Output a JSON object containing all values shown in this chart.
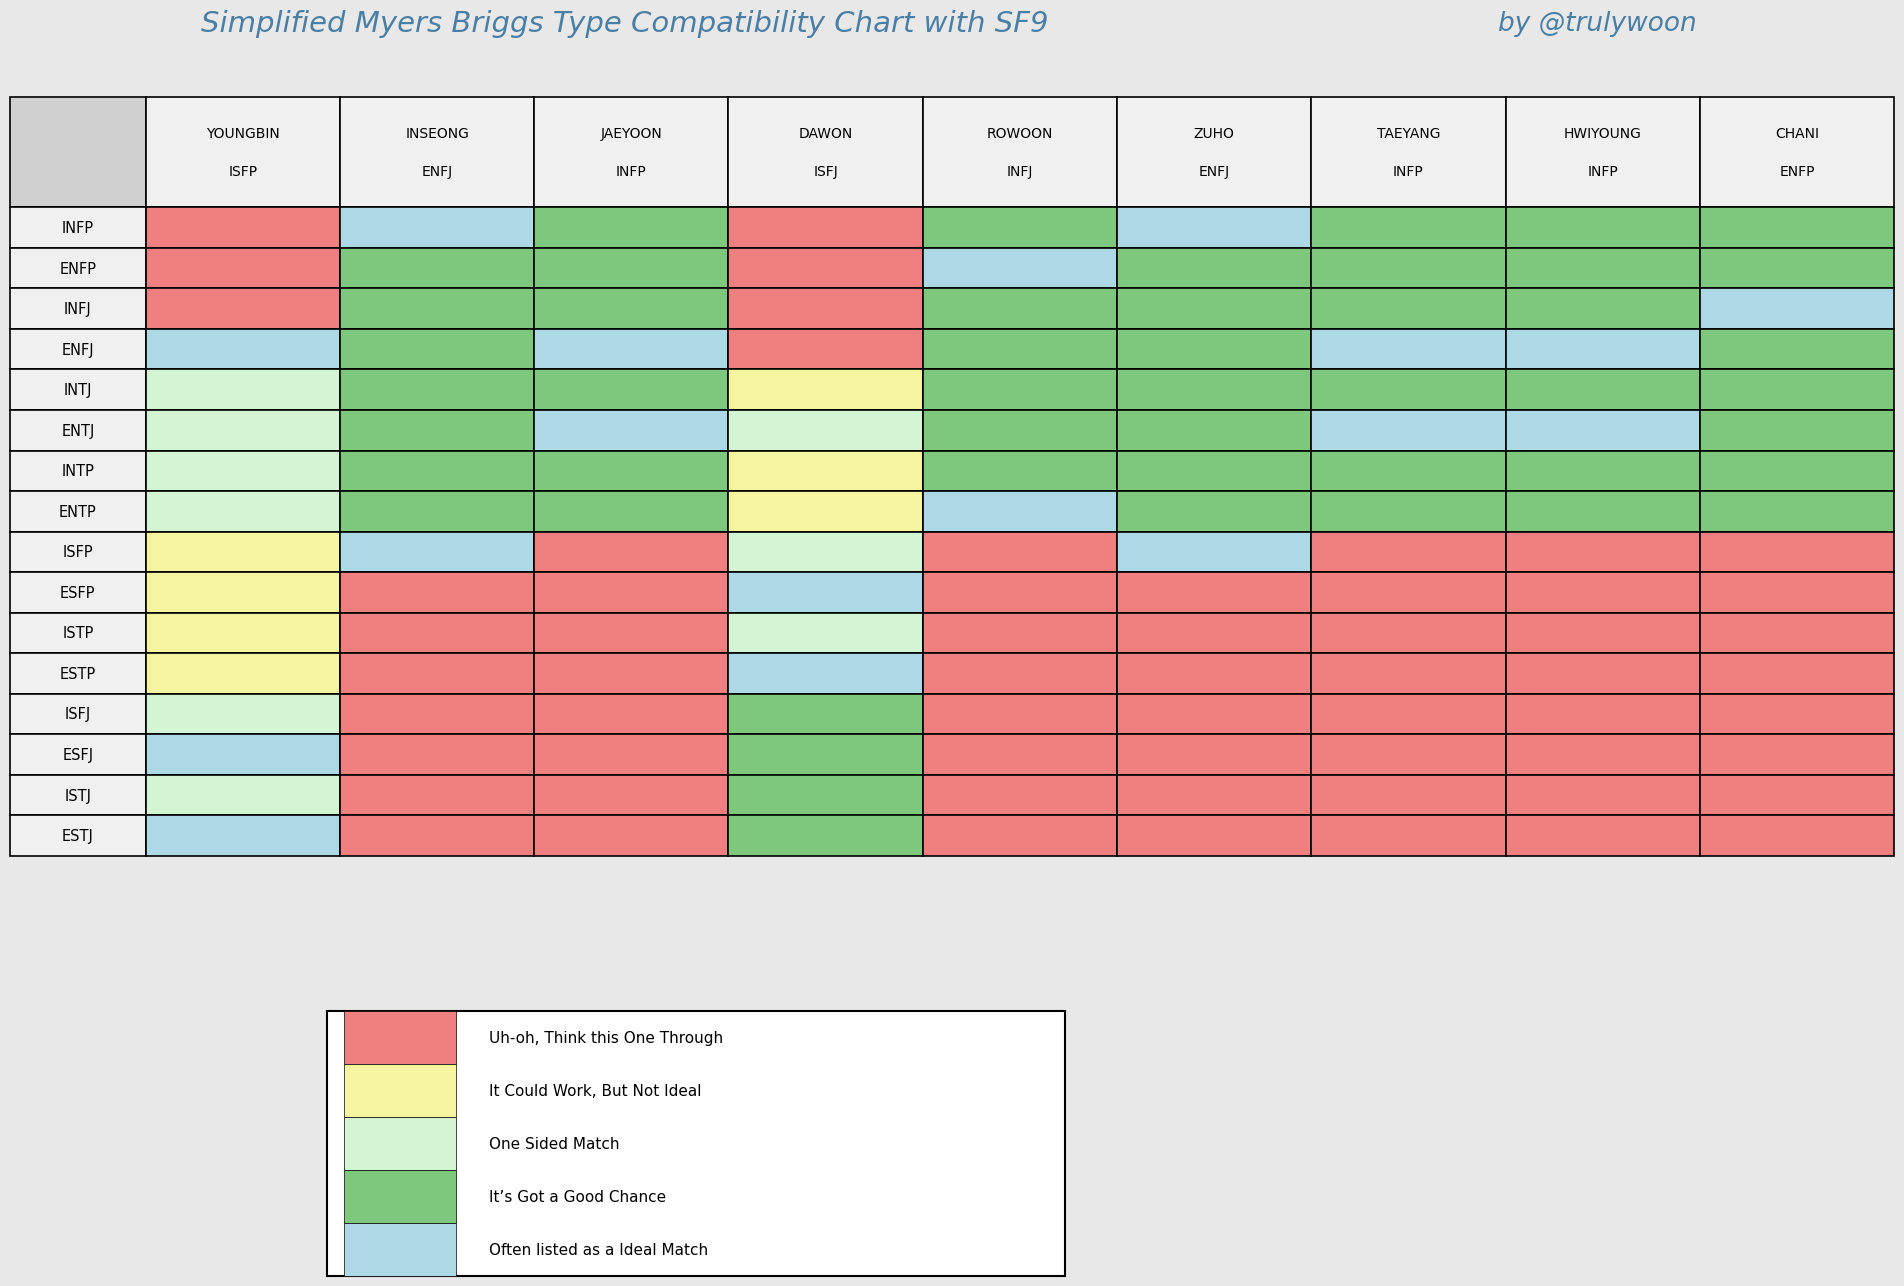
{
  "title": "Simplified Myers Briggs Type Compatibility Chart with SF9",
  "author": "by @trulywoon",
  "title_color": "#4a7fa5",
  "bg_color": "#e8e8e8",
  "columns": [
    {
      "name": "YOUNGBIN",
      "type": "ISFP"
    },
    {
      "name": "INSEONG",
      "type": "ENFJ"
    },
    {
      "name": "JAEYOON",
      "type": "INFP"
    },
    {
      "name": "DAWON",
      "type": "ISFJ"
    },
    {
      "name": "ROWOON",
      "type": "INFJ"
    },
    {
      "name": "ZUHO",
      "type": "ENFJ"
    },
    {
      "name": "TAEYANG",
      "type": "INFP"
    },
    {
      "name": "HWIYOUNG",
      "type": "INFP"
    },
    {
      "name": "CHANI",
      "type": "ENFP"
    }
  ],
  "rows": [
    "INFP",
    "ENFP",
    "INFJ",
    "ENFJ",
    "INTJ",
    "ENTJ",
    "INTP",
    "ENTP",
    "ISFP",
    "ESFP",
    "ISTP",
    "ESTP",
    "ISFJ",
    "ESFJ",
    "ISTJ",
    "ESTJ"
  ],
  "colors": {
    "R": "#f08080",
    "Y": "#f5f5a0",
    "LG": "#d4f5d4",
    "G": "#7dc87d",
    "B": "#add8e6",
    "gray": "#c8c8c8"
  },
  "legend": [
    {
      "color": "#f08080",
      "label": "Uh-oh, Think this One Through"
    },
    {
      "color": "#f5f5a0",
      "label": "It Could Work, But Not Ideal"
    },
    {
      "color": "#d4f5d4",
      "label": "One Sided Match"
    },
    {
      "color": "#7dc87d",
      "label": "It’s Got a Good Chance"
    },
    {
      "color": "#add8e6",
      "label": "Often listed as a Ideal Match"
    }
  ],
  "grid": [
    [
      "R",
      "B",
      "G",
      "R",
      "G",
      "B",
      "G",
      "G",
      "G"
    ],
    [
      "R",
      "G",
      "G",
      "R",
      "B",
      "G",
      "G",
      "G",
      "G"
    ],
    [
      "R",
      "G",
      "G",
      "R",
      "G",
      "G",
      "G",
      "G",
      "B"
    ],
    [
      "B",
      "G",
      "B",
      "R",
      "G",
      "G",
      "B",
      "B",
      "G"
    ],
    [
      "LG",
      "G",
      "G",
      "Y",
      "G",
      "G",
      "G",
      "G",
      "G"
    ],
    [
      "LG",
      "G",
      "B",
      "LG",
      "G",
      "G",
      "B",
      "B",
      "G"
    ],
    [
      "LG",
      "G",
      "G",
      "Y",
      "G",
      "G",
      "G",
      "G",
      "G"
    ],
    [
      "LG",
      "G",
      "G",
      "Y",
      "B",
      "G",
      "G",
      "G",
      "G"
    ],
    [
      "Y",
      "B",
      "R",
      "LG",
      "R",
      "B",
      "R",
      "R",
      "R"
    ],
    [
      "Y",
      "R",
      "R",
      "B",
      "R",
      "R",
      "R",
      "R",
      "R"
    ],
    [
      "Y",
      "R",
      "R",
      "LG",
      "R",
      "R",
      "R",
      "R",
      "R"
    ],
    [
      "Y",
      "R",
      "R",
      "B",
      "R",
      "R",
      "R",
      "R",
      "R"
    ],
    [
      "LG",
      "R",
      "R",
      "G",
      "R",
      "R",
      "R",
      "R",
      "R"
    ],
    [
      "B",
      "R",
      "R",
      "G",
      "R",
      "R",
      "R",
      "R",
      "R"
    ],
    [
      "LG",
      "R",
      "R",
      "G",
      "R",
      "R",
      "R",
      "R",
      "R"
    ],
    [
      "B",
      "R",
      "R",
      "G",
      "R",
      "R",
      "R",
      "R",
      "R"
    ]
  ]
}
